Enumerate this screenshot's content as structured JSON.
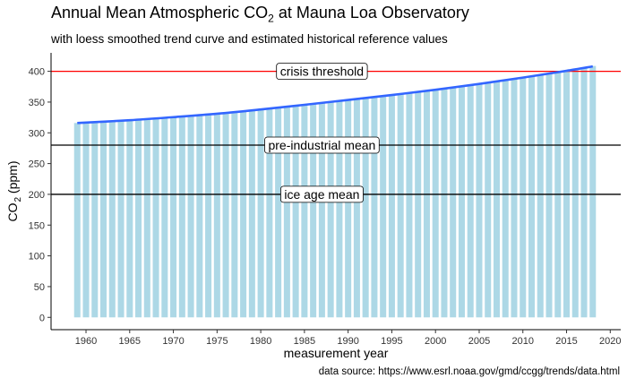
{
  "title": "Annual Mean Atmospheric CO",
  "title_sub": "2",
  "title_tail": " at Mauna Loa Observatory",
  "subtitle": "with loess smoothed trend curve and estimated historical reference values",
  "caption": "data source: https://www.esrl.noaa.gov/gmd/ccgg/trends/data.html",
  "chart_data": {
    "type": "bar",
    "xlabel": "measurement year",
    "ylabel_main": "CO",
    "ylabel_sub": "2",
    "ylabel_tail": " (ppm)",
    "xlim": [
      1956,
      2021.2
    ],
    "ylim": [
      -20,
      430
    ],
    "x_ticks": [
      1960,
      1965,
      1970,
      1975,
      1980,
      1985,
      1990,
      1995,
      2000,
      2005,
      2010,
      2015,
      2020
    ],
    "y_ticks": [
      0,
      50,
      100,
      150,
      200,
      250,
      300,
      350,
      400
    ],
    "bar_color": "#add8e6",
    "trend_color": "#3366ff",
    "grid": false,
    "x": [
      1959,
      1960,
      1961,
      1962,
      1963,
      1964,
      1965,
      1966,
      1967,
      1968,
      1969,
      1970,
      1971,
      1972,
      1973,
      1974,
      1975,
      1976,
      1977,
      1978,
      1979,
      1980,
      1981,
      1982,
      1983,
      1984,
      1985,
      1986,
      1987,
      1988,
      1989,
      1990,
      1991,
      1992,
      1993,
      1994,
      1995,
      1996,
      1997,
      1998,
      1999,
      2000,
      2001,
      2002,
      2003,
      2004,
      2005,
      2006,
      2007,
      2008,
      2009,
      2010,
      2011,
      2012,
      2013,
      2014,
      2015,
      2016,
      2017,
      2018
    ],
    "values": [
      316.0,
      316.9,
      317.6,
      318.5,
      319.0,
      319.6,
      320.0,
      321.4,
      322.2,
      323.0,
      324.6,
      325.7,
      326.3,
      327.5,
      329.7,
      330.2,
      331.1,
      332.0,
      333.8,
      335.4,
      336.8,
      338.7,
      339.9,
      341.1,
      342.8,
      344.4,
      345.9,
      347.2,
      348.9,
      351.5,
      352.9,
      354.2,
      355.6,
      356.4,
      357.1,
      358.8,
      360.8,
      362.6,
      363.7,
      366.7,
      368.4,
      369.7,
      371.3,
      373.5,
      375.8,
      377.5,
      379.8,
      381.9,
      383.8,
      385.6,
      387.4,
      389.9,
      391.6,
      393.9,
      396.5,
      398.6,
      400.8,
      404.2,
      406.5,
      408.7
    ],
    "trend": {
      "x": [
        1959,
        1965,
        1970,
        1975,
        1980,
        1985,
        1990,
        1995,
        2000,
        2005,
        2010,
        2015,
        2018
      ],
      "values": [
        316.0,
        320.5,
        325.5,
        331.0,
        338.0,
        345.5,
        353.5,
        361.5,
        370.0,
        379.5,
        389.8,
        400.8,
        408.0
      ]
    },
    "reference_lines": [
      {
        "value": 400,
        "label": "crisis threshold",
        "color": "#ff0000",
        "label_x": 1987
      },
      {
        "value": 280,
        "label": "pre-industrial mean",
        "color": "#000000",
        "label_x": 1987
      },
      {
        "value": 200,
        "label": "ice age mean",
        "color": "#000000",
        "label_x": 1987
      }
    ]
  }
}
